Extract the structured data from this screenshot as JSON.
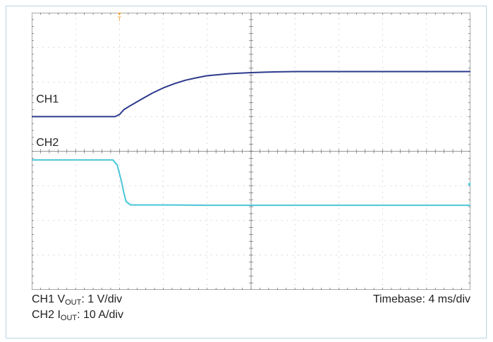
{
  "chart_data": {
    "type": "line",
    "title": "",
    "grid": true,
    "grid_divisions": {
      "x": 10,
      "y": 8
    },
    "x_unit": "div",
    "xlim": [
      0,
      10
    ],
    "y_unit": "div",
    "ylim": [
      0,
      8
    ],
    "trigger_marker": {
      "label": "T",
      "x_div": 2.0,
      "color": "#f0a030"
    },
    "channel_labels": [
      {
        "text": "CH1",
        "x_div": 0.1,
        "y_div": 5.4
      },
      {
        "text": "CH2",
        "x_div": 0.1,
        "y_div": 4.15
      }
    ],
    "series": [
      {
        "name": "CH1",
        "color": "#2d3a8c",
        "x": [
          0,
          1.9,
          2.0,
          2.1,
          2.25,
          2.5,
          2.75,
          3.0,
          3.25,
          3.5,
          3.75,
          4.0,
          4.5,
          5.0,
          5.5,
          6.0,
          7.0,
          8.0,
          9.0,
          10.0
        ],
        "y": [
          5.0,
          5.0,
          5.06,
          5.2,
          5.32,
          5.5,
          5.68,
          5.83,
          5.95,
          6.05,
          6.12,
          6.18,
          6.24,
          6.27,
          6.29,
          6.3,
          6.3,
          6.3,
          6.3,
          6.3
        ]
      },
      {
        "name": "CH2",
        "color": "#49c6d8",
        "x": [
          0,
          1.85,
          1.95,
          2.0,
          2.05,
          2.1,
          2.15,
          2.25,
          2.5,
          3.0,
          4.0,
          5.0,
          6.0,
          7.0,
          8.0,
          9.0,
          10.0
        ],
        "y": [
          3.75,
          3.75,
          3.6,
          3.35,
          3.1,
          2.8,
          2.55,
          2.45,
          2.45,
          2.45,
          2.44,
          2.44,
          2.44,
          2.44,
          2.44,
          2.44,
          2.44
        ]
      }
    ],
    "right_marker": {
      "x_div": 10.0,
      "y_div": 3.05,
      "color": "#49c6d8"
    }
  },
  "caption": {
    "ch1_prefix": "CH1 V",
    "ch1_sub": "OUT",
    "ch1_suffix": ": 1 V/div",
    "ch2_prefix": "CH2 I",
    "ch2_sub": "OUT",
    "ch2_suffix": ": 10 A/div",
    "timebase": "Timebase: 4 ms/div"
  }
}
